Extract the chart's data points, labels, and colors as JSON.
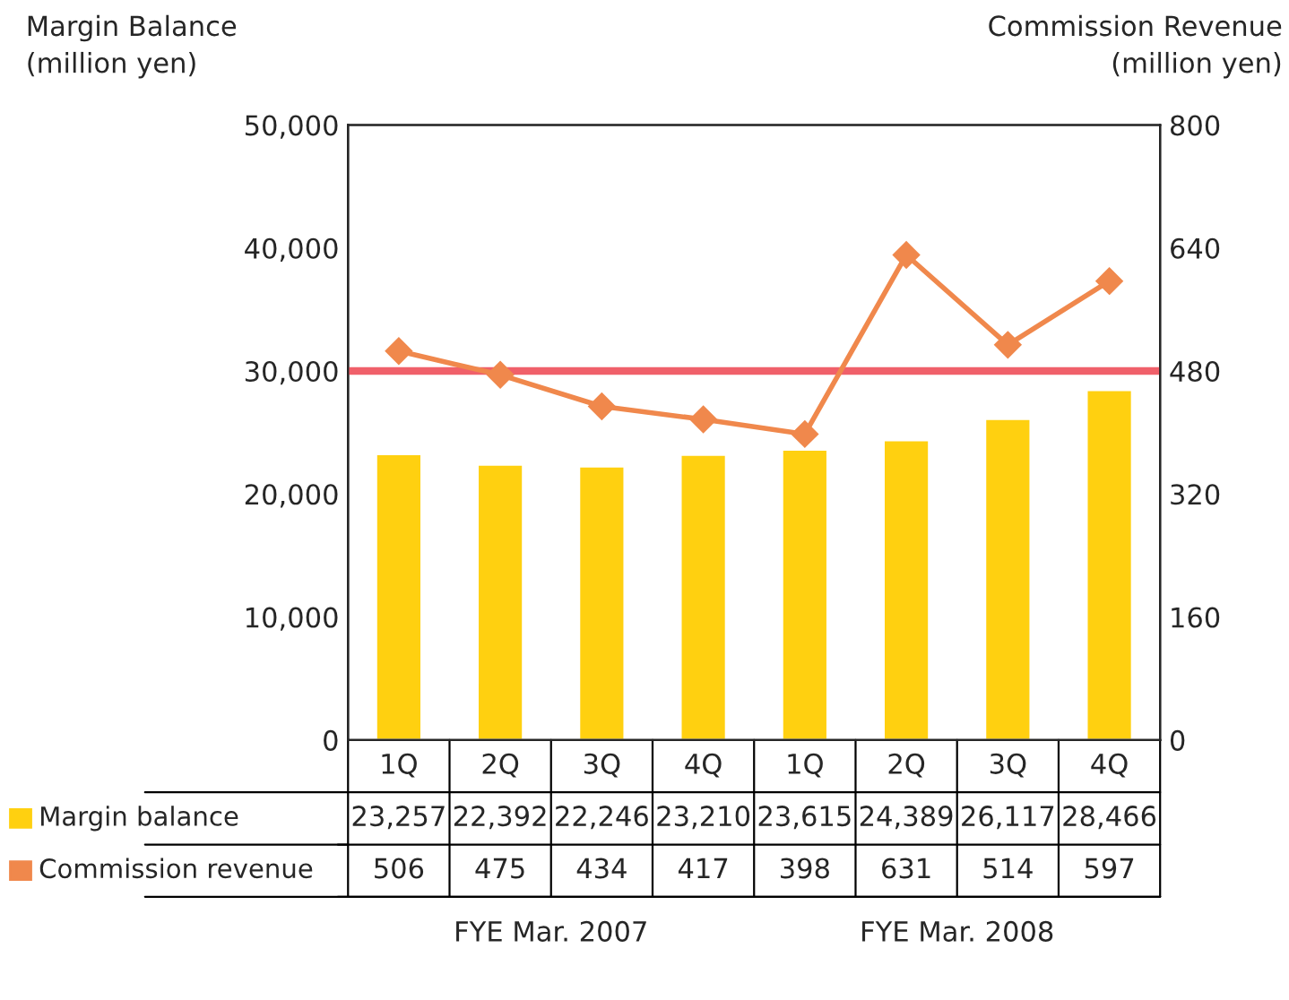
{
  "chart_data": {
    "type": "bar",
    "ylabel": "Margin Balance\n(million yen)",
    "y2label": "Commission Revenue\n(million yen)",
    "categories": [
      "1Q",
      "2Q",
      "3Q",
      "4Q",
      "1Q",
      "2Q",
      "3Q",
      "4Q"
    ],
    "series": [
      {
        "name": "Margin balance",
        "color": "#ffd010",
        "values": [
          23257,
          22392,
          22246,
          23210,
          23615,
          24389,
          26117,
          28466
        ],
        "value_labels": [
          "23,257",
          "22,392",
          "22,246",
          "23,210",
          "23,615",
          "24,389",
          "26,117",
          "28,466"
        ]
      },
      {
        "name": "Commission revenue",
        "type": "line",
        "axis": "y2",
        "color": "#f0884c",
        "marker": "diamond",
        "line_style": "solid",
        "values": [
          506,
          475,
          434,
          417,
          398,
          631,
          514,
          597
        ],
        "value_labels": [
          "506",
          "475",
          "434",
          "417",
          "398",
          "631",
          "514",
          "597"
        ]
      }
    ],
    "ylim": [
      0,
      50000
    ],
    "yticks": [
      0,
      {
        "value": 10000,
        "label": "10,000"
      },
      {
        "value": 20000,
        "label": "20,000"
      },
      {
        "value": 30000,
        "label": "30,000"
      },
      {
        "value": 40000,
        "label": "40,000"
      },
      {
        "value": 50000,
        "label": "50,000"
      }
    ],
    "y2lim": [
      0,
      800
    ],
    "y2ticks": [
      0,
      160,
      320,
      480,
      640,
      800
    ],
    "ref_lines": [
      {
        "axis": "y",
        "value": 30000,
        "color": "#f0606a",
        "line_style": "solid"
      }
    ],
    "grid": false,
    "legend": "bottom left",
    "annotations": [
      "FYE Mar. 2007",
      "FYE Mar. 2008"
    ]
  }
}
